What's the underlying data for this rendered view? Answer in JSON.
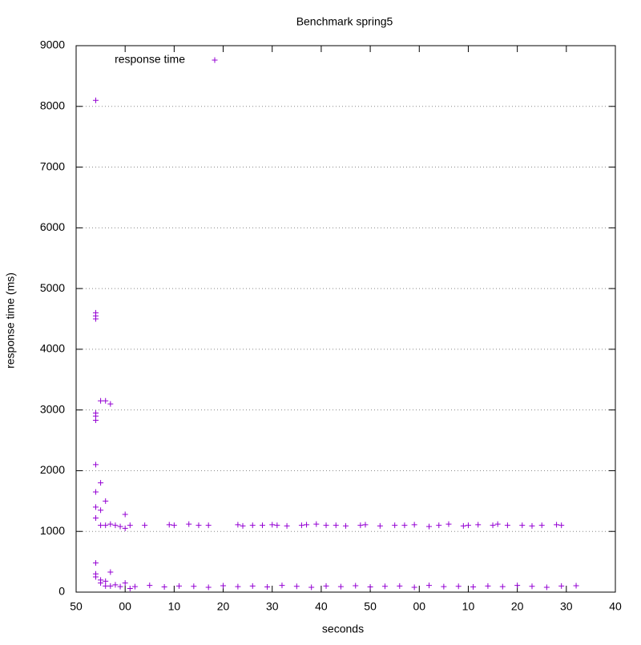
{
  "chart_data": {
    "type": "scatter",
    "title": "Benchmark spring5",
    "x_label": "seconds",
    "y_label": "response time (ms)",
    "legend": "top left",
    "grid": true,
    "xlim": [
      50,
      160
    ],
    "xticks": [
      50,
      {
        "value": 60,
        "label": "00"
      },
      {
        "value": 70,
        "label": "10"
      },
      {
        "value": 80,
        "label": "20"
      },
      {
        "value": 90,
        "label": "30"
      },
      {
        "value": 100,
        "label": "40"
      },
      {
        "value": 110,
        "label": "50"
      },
      {
        "value": 120,
        "label": "00"
      },
      {
        "value": 130,
        "label": "10"
      },
      {
        "value": 140,
        "label": "20"
      },
      {
        "value": 150,
        "label": "30"
      },
      {
        "value": 160,
        "label": "40"
      }
    ],
    "ylim": [
      0,
      9000
    ],
    "yticks": [
      0,
      1000,
      2000,
      3000,
      4000,
      5000,
      6000,
      7000,
      8000,
      9000
    ],
    "series": [
      {
        "name": "response time",
        "color": "#9400d3",
        "x": [
          54,
          54,
          54,
          54,
          54,
          54,
          54,
          54,
          54,
          54,
          54,
          54,
          54,
          54,
          55,
          55,
          55,
          55,
          55,
          55,
          56,
          56,
          56,
          56,
          56,
          57,
          57,
          57,
          57,
          58,
          58,
          59,
          59,
          60,
          60,
          60,
          61,
          61,
          62,
          65,
          68,
          71,
          74,
          77,
          80,
          83,
          86,
          89,
          92,
          95,
          98,
          101,
          104,
          107,
          110,
          113,
          116,
          119,
          122,
          125,
          128,
          131,
          134,
          137,
          140,
          143,
          146,
          149,
          152,
          64,
          69,
          70,
          73,
          75,
          77,
          83,
          84,
          86,
          88,
          90,
          91,
          93,
          96,
          97,
          99,
          101,
          103,
          105,
          108,
          109,
          112,
          115,
          117,
          119,
          122,
          124,
          126,
          129,
          130,
          132,
          135,
          136,
          138,
          141,
          143,
          145,
          148,
          149
        ],
        "values": [
          8100,
          4600,
          4550,
          4500,
          2950,
          2900,
          2830,
          2100,
          1650,
          1400,
          1220,
          480,
          300,
          250,
          3150,
          1800,
          1350,
          1100,
          200,
          150,
          3150,
          1500,
          1100,
          180,
          100,
          3100,
          1120,
          330,
          100,
          1100,
          120,
          1080,
          90,
          1280,
          1050,
          150,
          1100,
          60,
          90,
          110,
          85,
          100,
          95,
          80,
          105,
          90,
          100,
          85,
          110,
          95,
          80,
          100,
          90,
          105,
          85,
          95,
          100,
          80,
          110,
          90,
          95,
          85,
          100,
          90,
          110,
          95,
          80,
          100,
          105,
          1100,
          1110,
          1100,
          1120,
          1100,
          1100,
          1110,
          1090,
          1100,
          1100,
          1110,
          1100,
          1090,
          1100,
          1110,
          1120,
          1100,
          1100,
          1090,
          1100,
          1110,
          1090,
          1100,
          1100,
          1110,
          1080,
          1100,
          1120,
          1090,
          1100,
          1110,
          1100,
          1120,
          1100,
          1100,
          1090,
          1100,
          1110,
          1100
        ]
      }
    ]
  }
}
